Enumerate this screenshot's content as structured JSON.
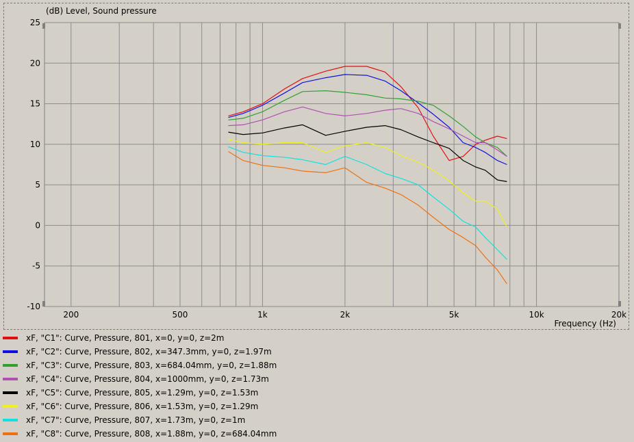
{
  "chart_data": {
    "type": "line",
    "title": "(dB)  Level, Sound pressure",
    "xlabel": "Frequency  (Hz)",
    "x_scale": "log",
    "xlim": [
      160,
      20000
    ],
    "ylim": [
      -10,
      25
    ],
    "grid": true,
    "x_tick_labels": [
      {
        "value": 200,
        "label": "200"
      },
      {
        "value": 500,
        "label": "500"
      },
      {
        "value": 1000,
        "label": "1k"
      },
      {
        "value": 2000,
        "label": "2k"
      },
      {
        "value": 5000,
        "label": "5k"
      },
      {
        "value": 10000,
        "label": "10k"
      },
      {
        "value": 20000,
        "label": "20k"
      }
    ],
    "y_ticks": [
      25,
      20,
      15,
      10,
      5,
      0,
      -5,
      -10
    ],
    "series": [
      {
        "name": "xF, \"C1\": Curve, Pressure, 801, x=0, y=0, z=2m",
        "color": "#e01010",
        "x": [
          750,
          850,
          1000,
          1200,
          1400,
          1700,
          2000,
          2400,
          2800,
          3200,
          3700,
          4200,
          4800,
          5400,
          6000,
          6500,
          7200,
          7800
        ],
        "y": [
          13.5,
          14,
          15,
          16.8,
          18.1,
          19,
          19.6,
          19.6,
          18.9,
          17.1,
          14.5,
          11,
          8,
          8.5,
          10,
          10.5,
          11,
          10.7
        ]
      },
      {
        "name": "xF, \"C2\": Curve, Pressure, 802, x=347.3mm, y=0, z=1.97m",
        "color": "#1010e0",
        "x": [
          750,
          850,
          1000,
          1200,
          1400,
          1700,
          2000,
          2400,
          2800,
          3200,
          3700,
          4200,
          4800,
          5400,
          6000,
          6500,
          7200,
          7800
        ],
        "y": [
          13.3,
          13.8,
          14.8,
          16.3,
          17.6,
          18.2,
          18.6,
          18.5,
          17.8,
          16.6,
          15.1,
          13.7,
          12.1,
          10.2,
          9.6,
          9,
          8,
          7.5
        ]
      },
      {
        "name": "xF, \"C3\": Curve, Pressure, 803, x=684.04mm, y=0, z=1.88m",
        "color": "#30a030",
        "x": [
          750,
          850,
          1000,
          1200,
          1400,
          1700,
          2000,
          2400,
          2800,
          3200,
          3700,
          4200,
          4800,
          5400,
          6000,
          6500,
          7200,
          7800
        ],
        "y": [
          13,
          13.2,
          14,
          15.4,
          16.5,
          16.6,
          16.4,
          16.1,
          15.7,
          15.6,
          15.3,
          14.8,
          13.5,
          12.2,
          10.9,
          10.2,
          9.6,
          8.5
        ]
      },
      {
        "name": "xF, \"C4\": Curve, Pressure, 804, x=1000mm, y=0, z=1.73m",
        "color": "#b050b0",
        "x": [
          750,
          850,
          1000,
          1200,
          1400,
          1700,
          2000,
          2400,
          2800,
          3200,
          3700,
          4200,
          4800,
          5400,
          6000,
          6500,
          7200,
          7800
        ],
        "y": [
          12.3,
          12.4,
          13,
          14,
          14.6,
          13.8,
          13.5,
          13.8,
          14.2,
          14.4,
          13.8,
          12.8,
          11.9,
          11,
          10.2,
          10.2,
          9.3,
          8.5
        ]
      },
      {
        "name": "xF, \"C5\": Curve, Pressure, 805, x=1.29m, y=0, z=1.53m",
        "color": "#000000",
        "x": [
          750,
          850,
          1000,
          1200,
          1400,
          1700,
          2000,
          2400,
          2800,
          3200,
          3700,
          4200,
          4800,
          5400,
          6000,
          6500,
          7200,
          7800
        ],
        "y": [
          11.5,
          11.2,
          11.4,
          12,
          12.4,
          11.1,
          11.6,
          12.1,
          12.3,
          11.8,
          10.9,
          10.2,
          9.5,
          8,
          7.2,
          6.8,
          5.6,
          5.4
        ]
      },
      {
        "name": "xF, \"C6\": Curve, Pressure, 806, x=1.53m, y=0, z=1.29m",
        "color": "#f0f020",
        "x": [
          750,
          850,
          1000,
          1200,
          1400,
          1700,
          2000,
          2400,
          2800,
          3200,
          3700,
          4200,
          4800,
          5400,
          6000,
          6500,
          7200,
          7800
        ],
        "y": [
          10.6,
          10.2,
          10,
          10.2,
          10.2,
          9,
          9.8,
          10.2,
          9.6,
          8.6,
          7.8,
          6.8,
          5.5,
          4,
          3,
          3,
          2,
          -0.2
        ]
      },
      {
        "name": "xF, \"C7\": Curve, Pressure, 807, x=1.73m, y=0, z=1m",
        "color": "#10e0e0",
        "x": [
          750,
          850,
          1000,
          1200,
          1400,
          1700,
          2000,
          2400,
          2800,
          3200,
          3700,
          4200,
          4800,
          5400,
          6000,
          6500,
          7200,
          7800
        ],
        "y": [
          9.7,
          9,
          8.6,
          8.4,
          8.1,
          7.5,
          8.5,
          7.5,
          6.4,
          5.8,
          5,
          3.5,
          2,
          0.5,
          -0.2,
          -1.5,
          -3,
          -4.2
        ]
      },
      {
        "name": "xF, \"C8\": Curve, Pressure, 808, x=1.88m, y=0, z=684.04mm",
        "color": "#f07010",
        "x": [
          750,
          850,
          1000,
          1200,
          1400,
          1700,
          2000,
          2400,
          2800,
          3200,
          3700,
          4200,
          4800,
          5400,
          6000,
          6500,
          7200,
          7800
        ],
        "y": [
          9.1,
          8,
          7.4,
          7.1,
          6.7,
          6.5,
          7.1,
          5.3,
          4.6,
          3.8,
          2.5,
          1,
          -0.5,
          -1.5,
          -2.5,
          -3.9,
          -5.5,
          -7.2
        ]
      }
    ]
  }
}
